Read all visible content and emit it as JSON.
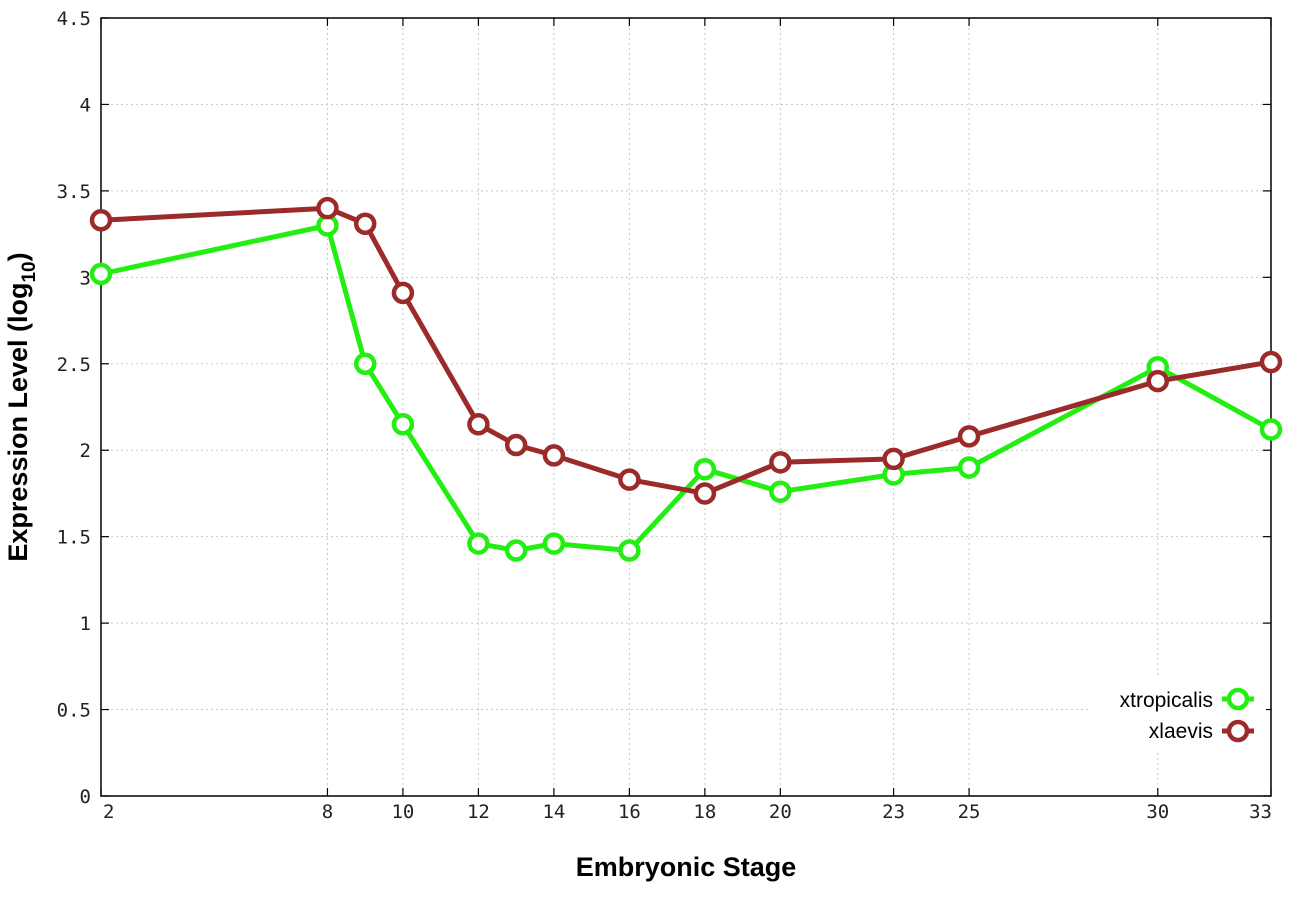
{
  "chart_data": {
    "type": "line",
    "title": "",
    "xlabel": "Embryonic Stage",
    "ylabel": {
      "main": "Expression Level (log",
      "sub": "10",
      "end": ")"
    },
    "x": [
      2,
      8,
      9,
      10,
      12,
      13,
      14,
      16,
      18,
      20,
      23,
      25,
      30,
      33
    ],
    "xticks": [
      "2",
      "8",
      "10",
      "12",
      "14",
      "16",
      "18",
      "20",
      "23",
      "25",
      "30",
      "33"
    ],
    "xlim": [
      2,
      33
    ],
    "yticks": [
      "0",
      "0.5",
      "1",
      "1.5",
      "2",
      "2.5",
      "3",
      "3.5",
      "4",
      "4.5"
    ],
    "ylim": [
      0,
      4.5
    ],
    "grid": true,
    "legend_position": "bottom-right",
    "series": [
      {
        "name": "xtropicalis",
        "color": "#22ee11",
        "values": [
          3.02,
          3.3,
          2.5,
          2.15,
          1.46,
          1.42,
          1.46,
          1.42,
          1.89,
          1.76,
          1.86,
          1.9,
          2.48,
          2.12
        ]
      },
      {
        "name": "xlaevis",
        "color": "#9b2a2a",
        "values": [
          3.33,
          3.4,
          3.31,
          2.91,
          2.15,
          2.03,
          1.97,
          1.83,
          1.75,
          1.93,
          1.95,
          2.08,
          2.4,
          2.51
        ]
      }
    ]
  }
}
